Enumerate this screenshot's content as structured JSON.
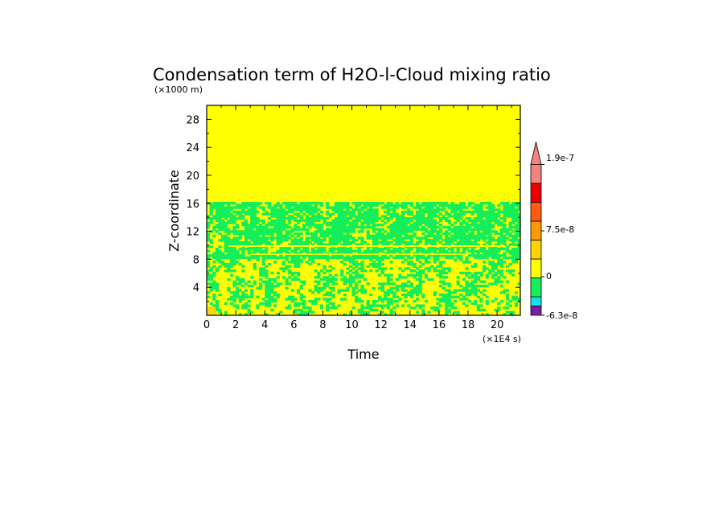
{
  "chart_data": {
    "type": "heatmap",
    "title": "Condensation term of H2O-l-Cloud mixing ratio",
    "xlabel": "Time",
    "ylabel": "Z-coordinate",
    "x_unit": "(×1E4 s)",
    "y_unit": "(×1000 m)",
    "xlim": [
      0,
      21.6
    ],
    "ylim": [
      0,
      30
    ],
    "x_ticks": [
      "0",
      "2",
      "4",
      "6",
      "8",
      "10",
      "12",
      "14",
      "16",
      "18",
      "20"
    ],
    "y_ticks": [
      "4",
      "8",
      "12",
      "16",
      "20",
      "24",
      "28"
    ],
    "colorbar": {
      "labels": [
        "1.9e-7",
        "7.5e-8",
        "0",
        "-6.3e-8"
      ],
      "colors": [
        "#7a1fa2",
        "#14e0ee",
        "#14ee5a",
        "#ffff00",
        "#ffd400",
        "#ff9a00",
        "#ff5a10",
        "#ee0000",
        "#f5827f"
      ],
      "extend": "max"
    },
    "regions": [
      {
        "z_range": [
          16,
          30
        ],
        "value": "0",
        "color": "#ffff00"
      },
      {
        "z_range": [
          9,
          16
        ],
        "value": "mostly slightly negative",
        "color": "#14ee5a"
      },
      {
        "z_range": [
          0,
          9
        ],
        "value": "mixed 0 and slightly negative",
        "color": "#ffff00"
      }
    ],
    "grid": false,
    "legend_position": "right"
  }
}
